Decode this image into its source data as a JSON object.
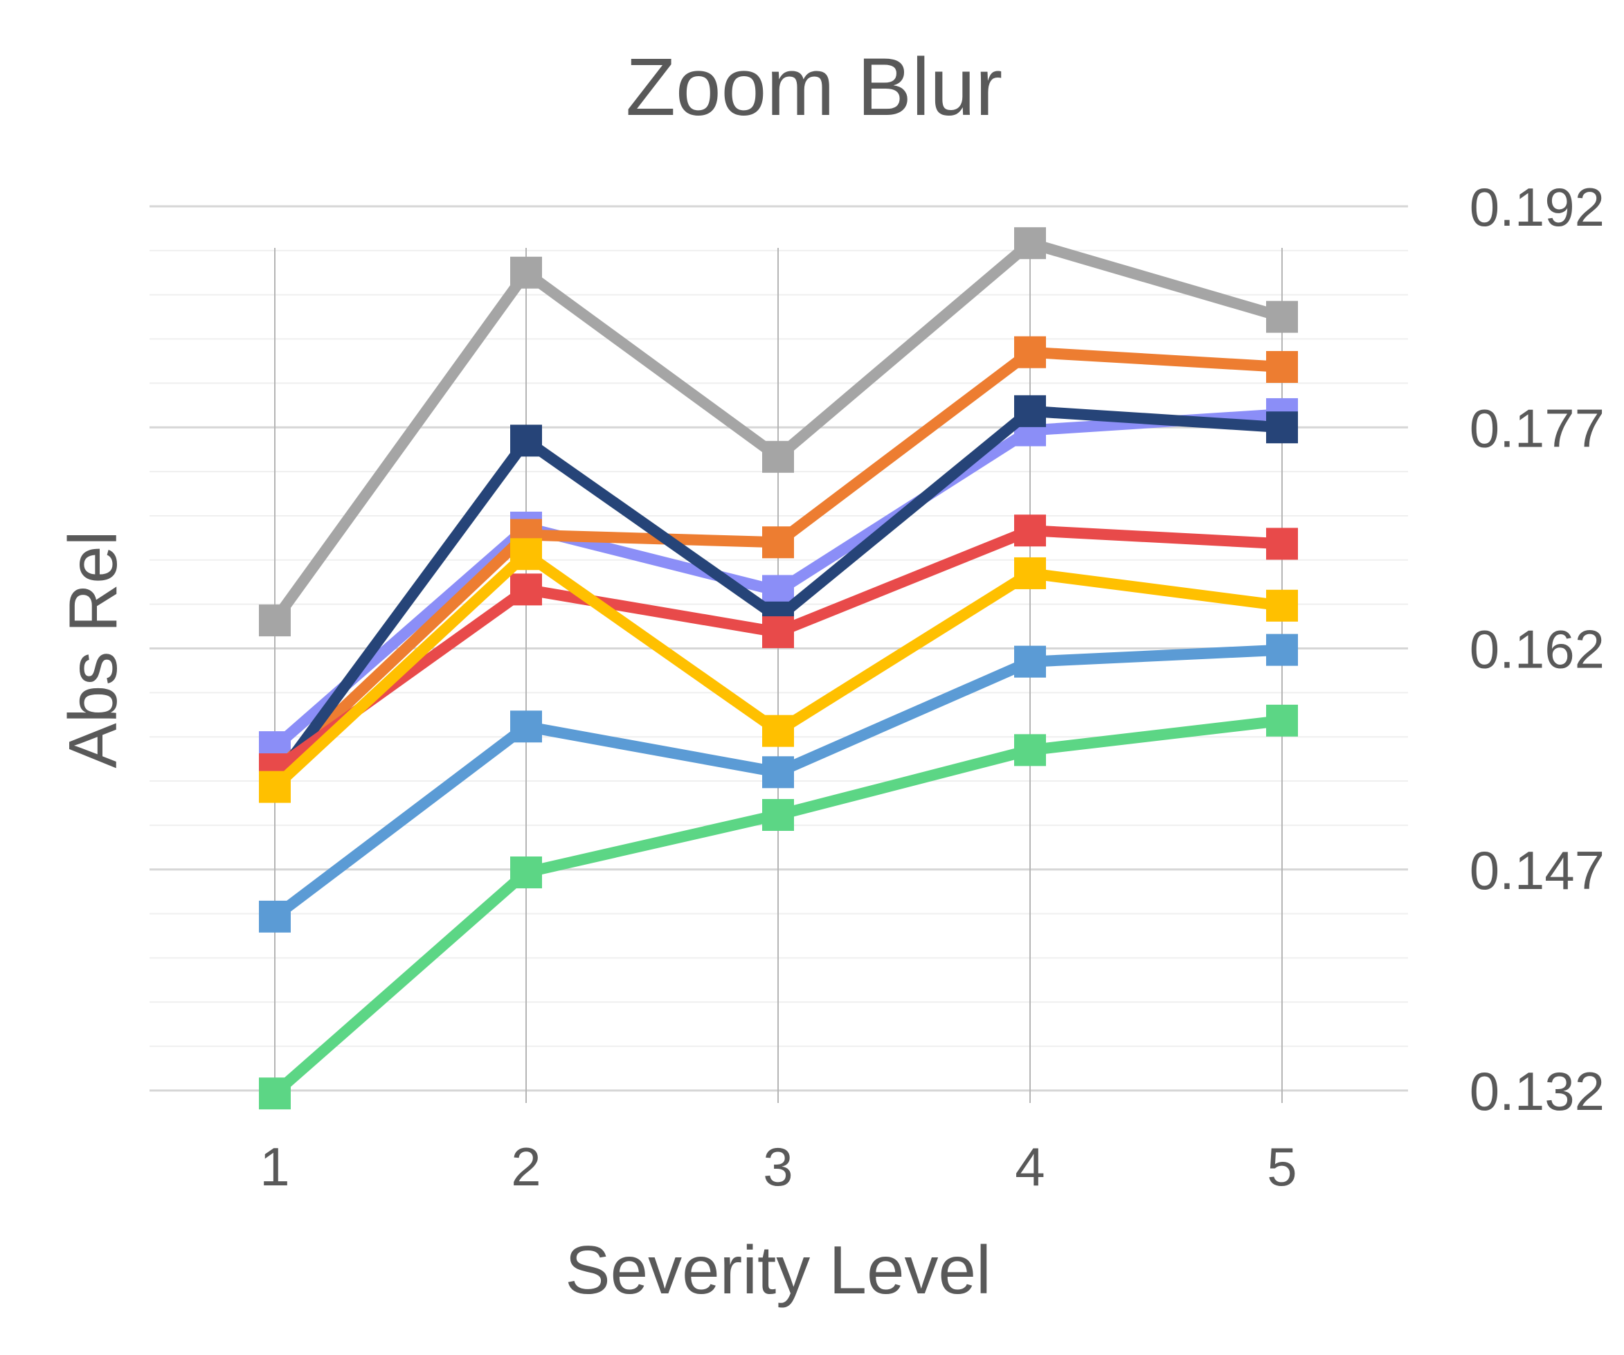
{
  "chart_data": {
    "type": "line",
    "title": "Zoom Blur",
    "xlabel": "Severity Level",
    "ylabel": "Abs Rel",
    "x": [
      1,
      2,
      3,
      4,
      5
    ],
    "x_tick_labels": [
      "1",
      "2",
      "3",
      "4",
      "5"
    ],
    "y_tick_labels": [
      "0.192",
      "0.177",
      "0.162",
      "0.147",
      "0.132"
    ],
    "ylim": [
      0.132,
      0.192
    ],
    "y_major_ticks": [
      0.132,
      0.147,
      0.162,
      0.177,
      0.192
    ],
    "y_minor_step": 0.003,
    "y_axis_side": "right",
    "grid": true,
    "marker": "square",
    "series": [
      {
        "color": "#a5a5a5",
        "values": [
          0.1639,
          0.1875,
          0.175,
          0.1895,
          0.1845
        ]
      },
      {
        "color": "#8b8ef7",
        "values": [
          0.1553,
          0.1702,
          0.1659,
          0.1768,
          0.1779
        ]
      },
      {
        "color": "#ed7d31",
        "values": [
          0.1536,
          0.1697,
          0.1692,
          0.1821,
          0.1811
        ]
      },
      {
        "color": "#264478",
        "values": [
          0.153,
          0.1761,
          0.1641,
          0.1781,
          0.177
        ]
      },
      {
        "color": "#e84a4a",
        "values": [
          0.1538,
          0.166,
          0.1631,
          0.17,
          0.1691
        ]
      },
      {
        "color": "#ffc000",
        "values": [
          0.1526,
          0.1684,
          0.1564,
          0.1671,
          0.1649
        ]
      },
      {
        "color": "#5b9bd5",
        "values": [
          0.1438,
          0.1567,
          0.1536,
          0.1611,
          0.1619
        ]
      },
      {
        "color": "#5cd685",
        "values": [
          0.1318,
          0.1468,
          0.1507,
          0.1551,
          0.1571
        ]
      }
    ]
  }
}
